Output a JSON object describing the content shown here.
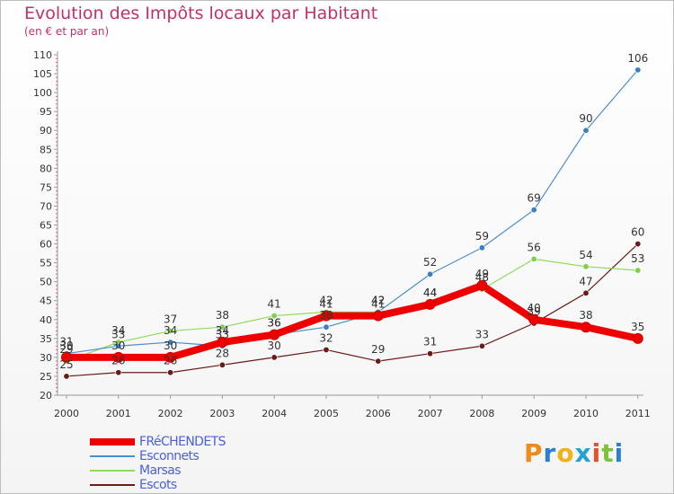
{
  "title": "Evolution des Impôts locaux par Habitant",
  "subtitle": "(en € et par an)",
  "logo_text": "Proxiti",
  "chart_data": {
    "type": "line",
    "title": "Evolution des Impôts locaux par Habitant",
    "subtitle": "(en € et par an)",
    "xlabel": "",
    "ylabel": "",
    "ylim": [
      20,
      110
    ],
    "ytick_step": 5,
    "categories": [
      "2000",
      "2001",
      "2002",
      "2003",
      "2004",
      "2005",
      "2006",
      "2007",
      "2008",
      "2009",
      "2010",
      "2011"
    ],
    "series": [
      {
        "name": "FRéCHENDETS",
        "color": "#ee0000",
        "values": [
          30,
          30,
          30,
          34,
          36,
          41,
          41,
          44,
          49,
          40,
          38,
          35
        ]
      },
      {
        "name": "Esconnets",
        "color": "#4b8fcf",
        "values": [
          31,
          33,
          34,
          33,
          36,
          38,
          42,
          52,
          59,
          69,
          90,
          106
        ]
      },
      {
        "name": "Marsas",
        "color": "#8fdc5a",
        "values": [
          29,
          34,
          37,
          38,
          41,
          42,
          42,
          44,
          48,
          56,
          54,
          53
        ]
      },
      {
        "name": "Escots",
        "color": "#6b1a1a",
        "values": [
          25,
          26,
          26,
          28,
          30,
          32,
          29,
          31,
          33,
          39,
          47,
          60
        ]
      }
    ],
    "legend": "bottom-left",
    "grid": false
  }
}
